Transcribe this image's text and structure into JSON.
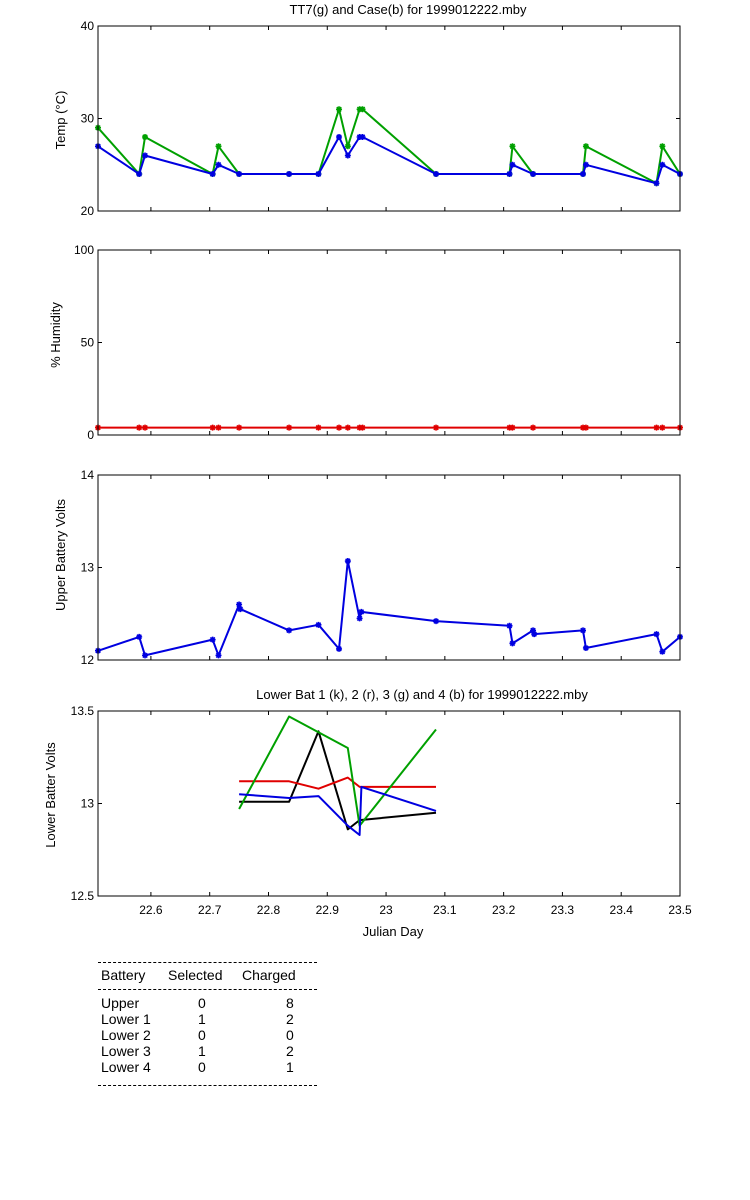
{
  "chart_data": [
    {
      "type": "line",
      "title": "TT7(g) and Case(b) for 1999012222.mby",
      "xlabel": "",
      "ylabel": "Temp  (°C)",
      "xlim": [
        22.51,
        23.5
      ],
      "ylim": [
        20,
        40
      ],
      "yticks": [
        "20",
        "30",
        "40"
      ],
      "grid": false,
      "series": [
        {
          "color": "#00a000",
          "marker": "*",
          "x": [
            22.51,
            22.58,
            22.59,
            22.705,
            22.715,
            22.75,
            22.835,
            22.885,
            22.92,
            22.935,
            22.955,
            22.96,
            23.085,
            23.21,
            23.215,
            23.25,
            23.335,
            23.34,
            23.46,
            23.47,
            23.5
          ],
          "y": [
            29,
            24,
            28,
            24,
            27,
            24,
            24,
            24,
            31,
            27,
            31,
            31,
            24,
            24,
            27,
            24,
            24,
            27,
            23,
            27,
            24
          ]
        },
        {
          "color": "#0000e0",
          "marker": "*",
          "x": [
            22.51,
            22.58,
            22.59,
            22.705,
            22.715,
            22.75,
            22.835,
            22.885,
            22.92,
            22.935,
            22.955,
            22.96,
            23.085,
            23.21,
            23.215,
            23.25,
            23.335,
            23.34,
            23.46,
            23.47,
            23.5
          ],
          "y": [
            27,
            24,
            26,
            24,
            25,
            24,
            24,
            24,
            28,
            26,
            28,
            28,
            24,
            24,
            25,
            24,
            24,
            25,
            23,
            25,
            24
          ]
        }
      ]
    },
    {
      "type": "line",
      "title": "",
      "xlabel": "",
      "ylabel": "% Humidity",
      "xlim": [
        22.51,
        23.5
      ],
      "ylim": [
        0,
        100
      ],
      "yticks": [
        "0",
        "50",
        "100"
      ],
      "grid": false,
      "series": [
        {
          "color": "#e00000",
          "marker": "*",
          "x": [
            22.51,
            22.58,
            22.59,
            22.705,
            22.715,
            22.75,
            22.835,
            22.885,
            22.92,
            22.935,
            22.955,
            22.96,
            23.085,
            23.21,
            23.215,
            23.25,
            23.335,
            23.34,
            23.46,
            23.47,
            23.5
          ],
          "y": [
            4,
            4,
            4,
            4,
            4,
            4,
            4,
            4,
            4,
            4,
            4,
            4,
            4,
            4,
            4,
            4,
            4,
            4,
            4,
            4,
            4
          ]
        }
      ]
    },
    {
      "type": "line",
      "title": "",
      "xlabel": "",
      "ylabel": "Upper Battery Volts",
      "xlim": [
        22.51,
        23.5
      ],
      "ylim": [
        12,
        14
      ],
      "yticks": [
        "12",
        "13",
        "14"
      ],
      "grid": false,
      "series": [
        {
          "color": "#0000e0",
          "marker": "*",
          "x": [
            22.51,
            22.58,
            22.59,
            22.705,
            22.715,
            22.75,
            22.752,
            22.835,
            22.885,
            22.92,
            22.935,
            22.955,
            22.958,
            23.085,
            23.21,
            23.215,
            23.25,
            23.252,
            23.335,
            23.34,
            23.46,
            23.47,
            23.5
          ],
          "y": [
            12.1,
            12.25,
            12.05,
            12.22,
            12.05,
            12.6,
            12.55,
            12.32,
            12.38,
            12.12,
            13.07,
            12.45,
            12.52,
            12.42,
            12.37,
            12.18,
            12.32,
            12.28,
            12.32,
            12.13,
            12.28,
            12.09,
            12.25
          ]
        }
      ]
    },
    {
      "type": "line",
      "title": "Lower Bat 1 (k), 2 (r), 3 (g) and 4 (b) for 1999012222.mby",
      "xlabel": "Julian Day",
      "ylabel": "Lower Batter Volts",
      "xlim": [
        22.51,
        23.5
      ],
      "ylim": [
        12.5,
        13.5
      ],
      "yticks": [
        "12.5",
        "13",
        "13.5"
      ],
      "xticks": [
        22.6,
        22.7,
        22.8,
        22.9,
        23,
        23.1,
        23.2,
        23.3,
        23.4,
        23.5
      ],
      "xtick_labels": [
        "22.6",
        "22.7",
        "22.8",
        "22.9",
        "23",
        "23.1",
        "23.2",
        "23.3",
        "23.4",
        "23.5"
      ],
      "grid": false,
      "series": [
        {
          "color": "#000000",
          "marker": "",
          "x": [
            22.75,
            22.835,
            22.885,
            22.935,
            22.955,
            23.085
          ],
          "y": [
            13.01,
            13.01,
            13.39,
            12.86,
            12.91,
            12.95
          ]
        },
        {
          "color": "#e00000",
          "marker": "",
          "x": [
            22.75,
            22.835,
            22.885,
            22.935,
            22.955,
            23.085
          ],
          "y": [
            13.12,
            13.12,
            13.08,
            13.14,
            13.09,
            13.09
          ]
        },
        {
          "color": "#00a000",
          "marker": "",
          "x": [
            22.75,
            22.835,
            22.935,
            22.955,
            23.085
          ],
          "y": [
            12.97,
            13.47,
            13.3,
            12.88,
            13.4
          ]
        },
        {
          "color": "#0000e0",
          "marker": "",
          "x": [
            22.75,
            22.835,
            22.885,
            22.935,
            22.955,
            22.958,
            23.085
          ],
          "y": [
            13.05,
            13.03,
            13.04,
            12.88,
            12.83,
            13.09,
            12.96
          ]
        }
      ]
    }
  ],
  "battery_table": {
    "headers": [
      "Battery",
      "Selected",
      "Charged"
    ],
    "rows": [
      [
        "Upper",
        "0",
        "8"
      ],
      [
        "Lower 1",
        "1",
        "2"
      ],
      [
        "Lower 2",
        "0",
        "0"
      ],
      [
        "Lower 3",
        "1",
        "2"
      ],
      [
        "Lower 4",
        "0",
        "1"
      ]
    ]
  }
}
